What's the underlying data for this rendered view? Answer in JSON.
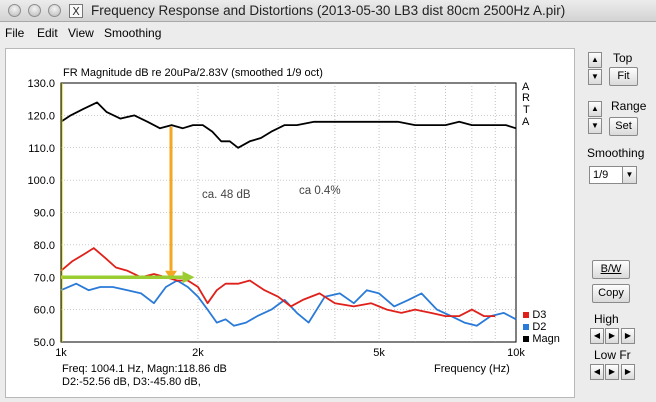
{
  "window": {
    "title": "Frequency Response and Distortions (2013-05-30 LB3 dist 80cm 2500Hz A.pir)",
    "app_icon": "X"
  },
  "menu": {
    "file": "File",
    "edit": "Edit",
    "view": "View",
    "smoothing": "Smoothing"
  },
  "plot": {
    "title": "FR Magnitude dB re 20uPa/2.83V (smoothed 1/9 oct)",
    "arta": [
      "A",
      "R",
      "T",
      "A"
    ],
    "xlabel": "Frequency (Hz)",
    "y_ticks": [
      "130.0",
      "120.0",
      "110.0",
      "100.0",
      "90.0",
      "80.0",
      "70.0",
      "60.0",
      "50.0"
    ],
    "x_ticks": [
      "1k",
      "2k",
      "5k",
      "10k"
    ],
    "annot_db": "ca. 48 dB",
    "annot_pct": "ca 0.4%",
    "legend": [
      {
        "name": "D3",
        "color": "#e0201a"
      },
      {
        "name": "D2",
        "color": "#2a7ad8"
      },
      {
        "name": "Magn",
        "color": "#000000"
      }
    ],
    "readout_line1": "Freq: 1004.1 Hz, Magn:118.86 dB",
    "readout_line2": "D2:-52.56 dB, D3:-45.80 dB,",
    "colors": {
      "magn": "#000000",
      "d2": "#2a7ad8",
      "d3": "#e0201a",
      "arrow_vertical": "#f5a623",
      "arrow_horizontal": "#9acd32",
      "grid": "#9a9a9a"
    }
  },
  "chart_data": {
    "type": "line",
    "xscale": "log",
    "xlim": [
      1000,
      10000
    ],
    "ylim": [
      50,
      130
    ],
    "series": [
      {
        "name": "Magn",
        "x": [
          1000,
          1050,
          1120,
          1200,
          1260,
          1350,
          1450,
          1550,
          1650,
          1750,
          1850,
          1950,
          2050,
          2150,
          2250,
          2350,
          2450,
          2600,
          2750,
          2900,
          3100,
          3300,
          3600,
          4000,
          4500,
          5000,
          5500,
          6000,
          6500,
          7000,
          7500,
          8000,
          8500,
          9000,
          9500,
          10000
        ],
        "y": [
          118,
          120,
          122,
          124,
          121,
          119,
          120,
          118,
          116,
          117,
          116,
          117,
          117,
          115,
          112,
          112,
          110,
          112,
          113,
          115,
          117,
          117,
          118,
          118,
          118,
          118,
          118,
          117,
          117,
          117,
          118,
          117,
          117,
          117,
          117,
          116
        ]
      },
      {
        "name": "D2",
        "x": [
          1000,
          1080,
          1150,
          1220,
          1300,
          1400,
          1500,
          1600,
          1700,
          1800,
          1900,
          2000,
          2100,
          2200,
          2300,
          2400,
          2550,
          2700,
          2900,
          3100,
          3300,
          3500,
          3800,
          4100,
          4400,
          4700,
          5000,
          5400,
          5800,
          6200,
          6700,
          7200,
          7700,
          8200,
          8800,
          9400,
          10000
        ],
        "y": [
          66,
          68,
          66,
          67,
          67,
          66,
          65,
          62,
          67,
          69,
          67,
          64,
          60,
          56,
          57,
          55,
          56,
          58,
          60,
          63,
          59,
          56,
          64,
          65,
          62,
          66,
          65,
          61,
          63,
          65,
          60,
          58,
          56,
          55,
          58,
          59,
          57
        ]
      },
      {
        "name": "D3",
        "x": [
          1000,
          1060,
          1120,
          1180,
          1250,
          1320,
          1400,
          1500,
          1600,
          1700,
          1800,
          1900,
          2000,
          2100,
          2200,
          2300,
          2450,
          2600,
          2800,
          3000,
          3200,
          3400,
          3700,
          4000,
          4400,
          4800,
          5200,
          5600,
          6000,
          6500,
          7000,
          7500,
          8000,
          8500,
          9000
        ],
        "y": [
          72,
          75,
          77,
          79,
          76,
          73,
          72,
          70,
          71,
          70,
          69,
          69,
          67,
          62,
          66,
          68,
          68,
          69,
          66,
          64,
          61,
          63,
          65,
          62,
          61,
          62,
          60,
          59,
          60,
          59,
          58,
          58,
          60,
          58,
          58
        ]
      }
    ]
  }
}
